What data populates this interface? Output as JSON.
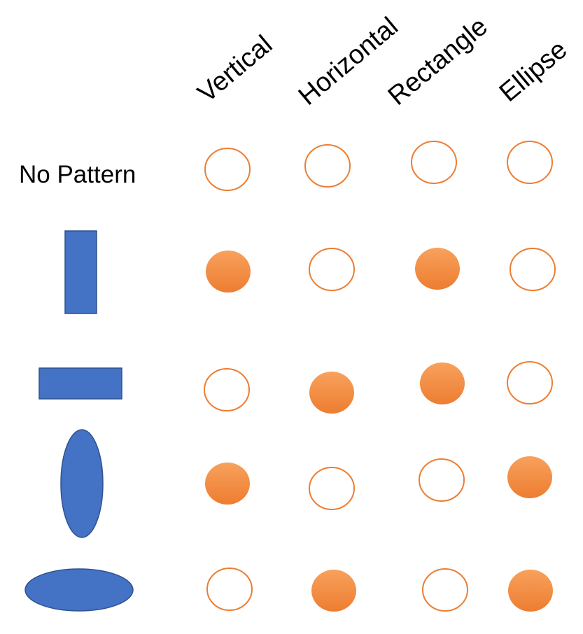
{
  "columns": [
    {
      "label": "Vertical"
    },
    {
      "label": "Horizontal"
    },
    {
      "label": "Rectangle"
    },
    {
      "label": "Ellipse"
    }
  ],
  "rows": [
    {
      "label": "No Pattern",
      "pattern": "none",
      "cells": [
        false,
        false,
        false,
        false
      ]
    },
    {
      "label": "",
      "pattern": "vertical-rectangle",
      "cells": [
        true,
        false,
        true,
        false
      ]
    },
    {
      "label": "",
      "pattern": "horizontal-rectangle",
      "cells": [
        false,
        true,
        true,
        false
      ]
    },
    {
      "label": "",
      "pattern": "vertical-ellipse",
      "cells": [
        true,
        false,
        false,
        true
      ]
    },
    {
      "label": "",
      "pattern": "horizontal-ellipse",
      "cells": [
        false,
        true,
        false,
        true
      ]
    }
  ],
  "colors": {
    "pattern_fill": "#4472c4",
    "pattern_stroke": "#2f528f",
    "cell_outline": "#ed7d31",
    "cell_fill_light": "#f8a15c",
    "cell_fill_dark": "#ed7d31"
  }
}
